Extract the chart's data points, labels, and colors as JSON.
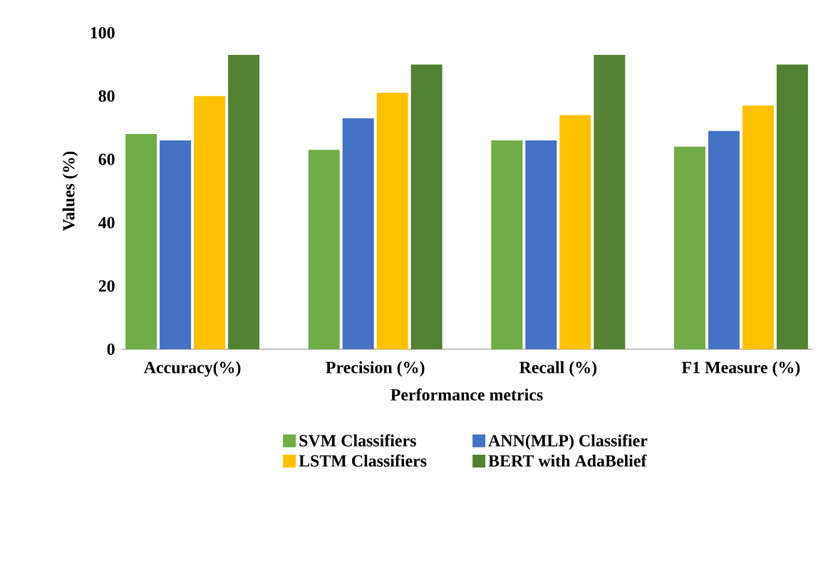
{
  "chart_data": {
    "type": "bar",
    "xlabel": "Performance metrics",
    "ylabel": "Values (%)",
    "categories": [
      "Accuracy(%)",
      "Precision (%)",
      "Recall (%)",
      "F1 Measure (%)"
    ],
    "series": [
      {
        "name": "SVM Classifiers",
        "color": "#70ad47",
        "values": [
          68,
          63,
          66,
          64
        ]
      },
      {
        "name": "ANN(MLP) Classifier",
        "color": "#4472c4",
        "values": [
          66,
          73,
          66,
          69
        ]
      },
      {
        "name": "LSTM Classifiers",
        "color": "#ffc000",
        "values": [
          80,
          81,
          74,
          77
        ]
      },
      {
        "name": "BERT with AdaBelief",
        "color": "#548235",
        "values": [
          93,
          90,
          93,
          90
        ]
      }
    ],
    "ylim": [
      0,
      100
    ],
    "yticks": [
      0,
      20,
      40,
      60,
      80,
      100
    ],
    "legend": "bottom"
  }
}
